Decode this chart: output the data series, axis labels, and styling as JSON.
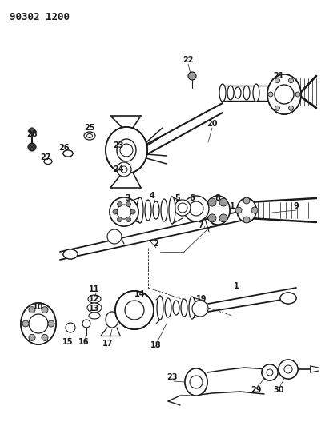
{
  "title": "90302 1200",
  "bg_color": "#ffffff",
  "line_color": "#1a1a1a",
  "fig_width": 4.01,
  "fig_height": 5.33,
  "dpi": 100
}
